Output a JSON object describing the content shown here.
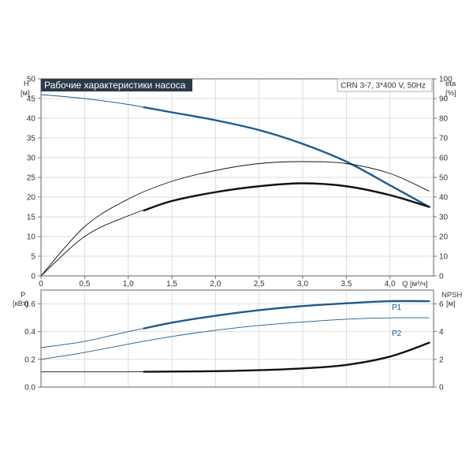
{
  "chart_data": [
    {
      "type": "line",
      "title": "Рабочие характеристики насоса",
      "subtitle": "CRN 3-7, 3*400 V, 50Hz",
      "xlabel": "Q [м³/ч]",
      "x_axis_unit": "Q [м³/ч]",
      "y_left_label": "H",
      "y_left_unit": "[м]",
      "y_right_label": "eta",
      "y_right_unit": "[%]",
      "xlim": [
        0,
        4.5
      ],
      "x_ticks": [
        0,
        0.5,
        1.0,
        1.5,
        2.0,
        2.5,
        3.0,
        3.5,
        4.0
      ],
      "x_tick_labels": [
        "0",
        "0,5",
        "1,0",
        "1,5",
        "2,0",
        "2,5",
        "3,0",
        "3,5",
        "4,0"
      ],
      "ylim_left": [
        0,
        50
      ],
      "y_left_ticks": [
        0,
        5,
        10,
        15,
        20,
        25,
        30,
        35,
        40,
        45,
        50
      ],
      "ylim_right": [
        0,
        100
      ],
      "y_right_ticks": [
        0,
        10,
        20,
        30,
        40,
        50,
        60,
        70,
        80,
        90,
        100
      ],
      "grid": true,
      "series": [
        {
          "color": "#1f5a8a",
          "axis": "left",
          "x": [
            0,
            0.5,
            1.0,
            1.5,
            2.0,
            2.5,
            3.0,
            3.5,
            4.0,
            4.45
          ],
          "y": [
            46,
            45,
            43.5,
            41.5,
            39.5,
            37,
            33.5,
            29,
            23,
            17.5
          ],
          "bold_from": 1.18
        },
        {
          "color": "#111111",
          "axis": "right",
          "x": [
            0,
            0.5,
            1.0,
            1.5,
            2.0,
            2.5,
            3.0,
            3.5,
            4.0,
            4.45
          ],
          "y": [
            0,
            25,
            39,
            48,
            53.5,
            57,
            58,
            57,
            52,
            43
          ],
          "bold_from": 99
        },
        {
          "color": "#111111",
          "axis": "right",
          "x": [
            0,
            0.5,
            1.0,
            1.5,
            2.0,
            2.5,
            3.0,
            3.5,
            4.0,
            4.45
          ],
          "y": [
            0,
            20,
            30.5,
            38,
            42.5,
            45.5,
            47,
            45.5,
            41,
            35
          ],
          "bold_from": 1.18
        }
      ]
    },
    {
      "type": "line",
      "y_left_label": "P",
      "y_left_unit": "[кВт]",
      "y_right_label": "NPSH",
      "y_right_unit": "[м]",
      "xlim": [
        0,
        4.5
      ],
      "ylim_left": [
        0,
        0.7
      ],
      "y_left_ticks": [
        0.0,
        0.2,
        0.4,
        0.6
      ],
      "y_left_tick_labels": [
        "0.0",
        "0.2",
        "0.4",
        "0.6"
      ],
      "ylim_right": [
        0,
        7
      ],
      "y_right_ticks": [
        0,
        2,
        4,
        6
      ],
      "grid": true,
      "series": [
        {
          "name": "P1",
          "color": "#1f5a8a",
          "axis": "left",
          "x": [
            0,
            0.5,
            1.0,
            1.5,
            2.0,
            2.5,
            3.0,
            3.5,
            4.0,
            4.45
          ],
          "y": [
            0.285,
            0.33,
            0.4,
            0.465,
            0.515,
            0.555,
            0.585,
            0.605,
            0.62,
            0.62
          ],
          "bold_from": 1.18
        },
        {
          "name": "P2",
          "color": "#1f5a8a",
          "axis": "left",
          "x": [
            0,
            0.5,
            1.0,
            1.5,
            2.0,
            2.5,
            3.0,
            3.5,
            4.0,
            4.45
          ],
          "y": [
            0.2,
            0.25,
            0.31,
            0.365,
            0.41,
            0.445,
            0.47,
            0.49,
            0.5,
            0.5
          ],
          "bold_from": 99
        },
        {
          "color": "#111111",
          "axis": "right",
          "x": [
            0,
            0.5,
            1.0,
            1.5,
            2.0,
            2.5,
            3.0,
            3.5,
            4.0,
            4.45
          ],
          "y": [
            1.1,
            1.1,
            1.1,
            1.12,
            1.15,
            1.22,
            1.35,
            1.6,
            2.2,
            3.2
          ],
          "bold_from": 1.18
        }
      ]
    }
  ]
}
